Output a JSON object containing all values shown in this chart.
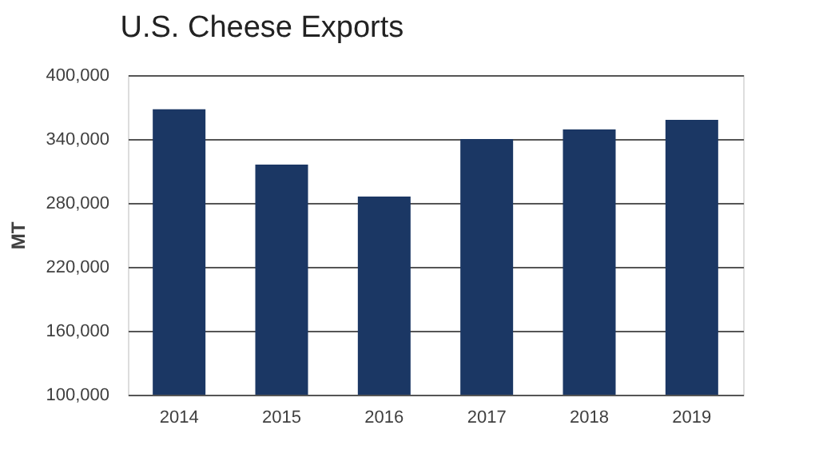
{
  "chart_data": {
    "type": "bar",
    "title": "U.S. Cheese Exports",
    "ylabel": "MT",
    "categories": [
      "2014",
      "2015",
      "2016",
      "2017",
      "2018",
      "2019"
    ],
    "values": [
      368000,
      316000,
      286000,
      340000,
      349000,
      358000
    ],
    "color": "#1b3764",
    "ylim": [
      100000,
      400000
    ],
    "yticks": [
      {
        "value": 100000,
        "label": "100,000"
      },
      {
        "value": 160000,
        "label": "160,000"
      },
      {
        "value": 220000,
        "label": "220,000"
      },
      {
        "value": 280000,
        "label": "280,000"
      },
      {
        "value": 340000,
        "label": "340,000"
      },
      {
        "value": 400000,
        "label": "400,000"
      }
    ],
    "grid": "y"
  }
}
